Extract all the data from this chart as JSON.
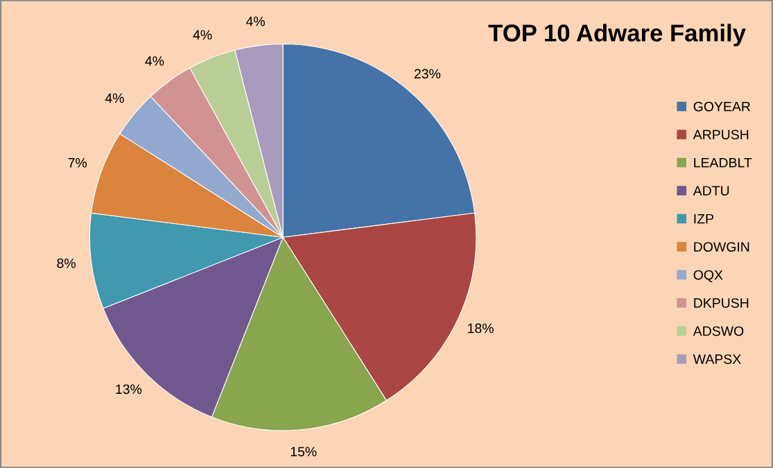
{
  "chart_data": {
    "type": "pie",
    "title": "TOP 10 Adware Family",
    "categories": [
      "GOYEAR",
      "ARPUSH",
      "LEADBLT",
      "ADTU",
      "IZP",
      "DOWGIN",
      "OQX",
      "DKPUSH",
      "ADSWO",
      "WAPSX"
    ],
    "values": [
      23,
      18,
      15,
      13,
      8,
      7,
      4,
      4,
      4,
      4
    ],
    "value_labels": [
      "23%",
      "18%",
      "15%",
      "13%",
      "8%",
      "7%",
      "4%",
      "4%",
      "4%",
      "4%"
    ],
    "colors": [
      "#4573a7",
      "#aa4644",
      "#89a54e",
      "#71588f",
      "#4198af",
      "#db843d",
      "#93a9cf",
      "#d19392",
      "#b9cd96",
      "#a99bbd"
    ],
    "legend": "right"
  }
}
